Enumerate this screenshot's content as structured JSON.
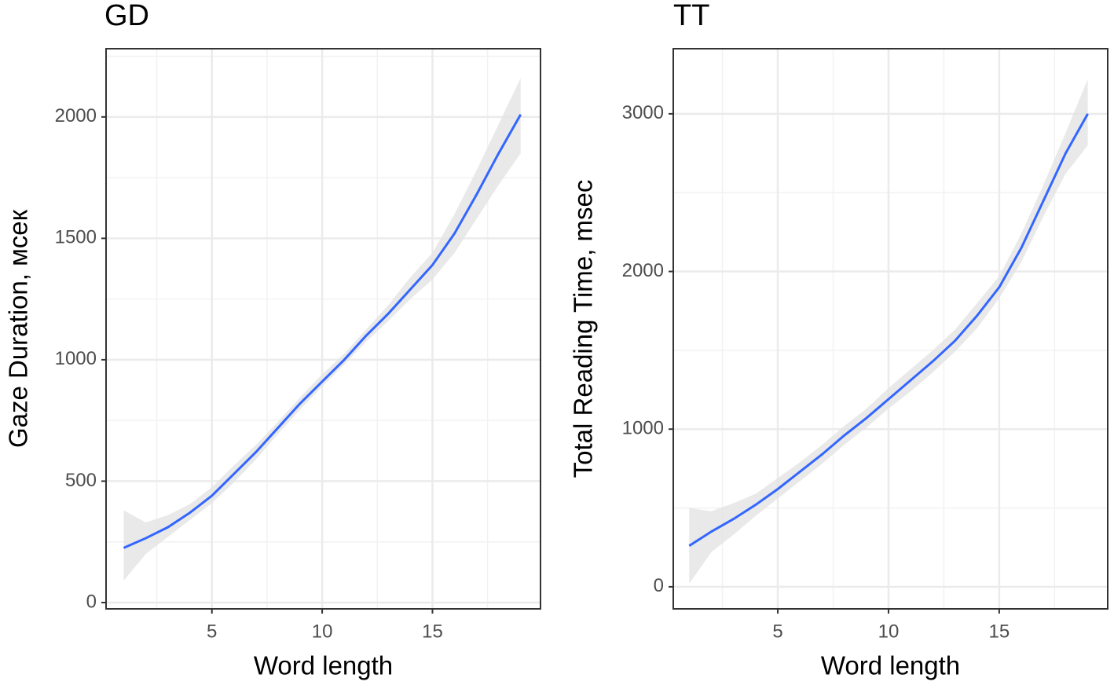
{
  "chart_data": [
    {
      "type": "line",
      "title": "GD",
      "x_label": "Word length",
      "y_label": "Gaze Duration, мсек",
      "x": [
        1,
        2,
        3,
        4,
        5,
        6,
        7,
        8,
        9,
        10,
        11,
        12,
        13,
        14,
        15,
        16,
        17,
        18,
        19
      ],
      "series": [
        {
          "color": "#3366ff",
          "values": [
            225,
            265,
            310,
            370,
            440,
            530,
            620,
            720,
            820,
            910,
            1000,
            1100,
            1190,
            1290,
            1390,
            1520,
            1680,
            1850,
            2010
          ],
          "ci_lower": [
            90,
            200,
            270,
            340,
            410,
            495,
            590,
            695,
            795,
            890,
            980,
            1075,
            1160,
            1250,
            1330,
            1440,
            1580,
            1720,
            1850
          ],
          "ci_upper": [
            380,
            330,
            360,
            405,
            475,
            565,
            650,
            745,
            845,
            940,
            1025,
            1125,
            1225,
            1340,
            1440,
            1600,
            1780,
            1970,
            2160
          ]
        }
      ],
      "xlim": [
        0.2,
        19.9
      ],
      "xticks": [
        5,
        10,
        15
      ],
      "minor_xticks": [
        2.5,
        7.5,
        12.5,
        17.5
      ],
      "ylim": [
        -26,
        2281
      ],
      "yticks": [
        0,
        500,
        1000,
        1500,
        2000
      ],
      "minor_yticks": [
        250,
        750,
        1250,
        1750,
        2250
      ],
      "grid": true,
      "band_color": "#e3e3e3"
    },
    {
      "type": "line",
      "title": "TT",
      "x_label": "Word length",
      "y_label": "Total Reading Time, msec",
      "x": [
        1,
        2,
        3,
        4,
        5,
        6,
        7,
        8,
        9,
        10,
        11,
        12,
        13,
        14,
        15,
        16,
        17,
        18,
        19
      ],
      "series": [
        {
          "color": "#3366ff",
          "values": [
            260,
            350,
            430,
            520,
            620,
            730,
            840,
            960,
            1070,
            1190,
            1310,
            1430,
            1560,
            1720,
            1900,
            2150,
            2450,
            2750,
            3000
          ],
          "ci_lower": [
            20,
            220,
            330,
            450,
            560,
            670,
            780,
            900,
            1010,
            1130,
            1240,
            1360,
            1490,
            1640,
            1830,
            2060,
            2350,
            2620,
            2800
          ],
          "ci_upper": [
            500,
            480,
            530,
            590,
            690,
            790,
            900,
            1020,
            1130,
            1260,
            1380,
            1500,
            1630,
            1800,
            1970,
            2240,
            2550,
            2880,
            3220
          ]
        }
      ],
      "xlim": [
        0.28,
        19.9
      ],
      "xticks": [
        5,
        10,
        15
      ],
      "minor_xticks": [
        2.5,
        7.5,
        12.5,
        17.5
      ],
      "ylim": [
        -140,
        3413
      ],
      "yticks": [
        0,
        1000,
        2000,
        3000
      ],
      "minor_yticks": [
        500,
        1500,
        2500
      ],
      "grid": true,
      "band_color": "#e3e3e3"
    }
  ]
}
